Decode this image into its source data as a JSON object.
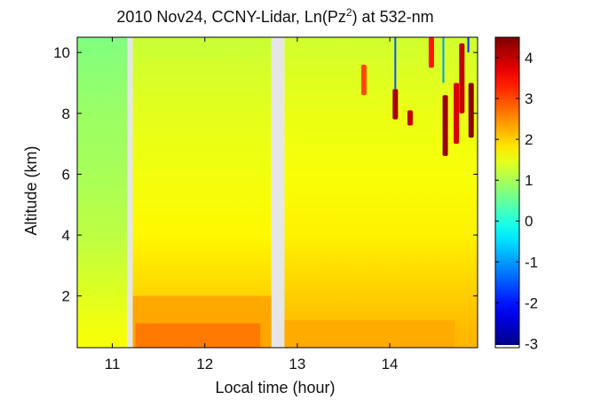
{
  "chart_data": {
    "type": "heatmap",
    "title": "2010 Nov24, CCNY-Lidar, Ln(Pz",
    "title_sup": "2",
    "title_suffix": ") at 532-nm",
    "xlabel": "Local time (hour)",
    "ylabel": "Altitude (km)",
    "xlim": [
      10.62,
      14.95
    ],
    "ylim": [
      0.3,
      10.5
    ],
    "x_ticks": [
      11,
      12,
      13,
      14
    ],
    "y_ticks": [
      2,
      4,
      6,
      8,
      10
    ],
    "colorbar": {
      "range": [
        -3.1,
        4.5
      ],
      "ticks": [
        4,
        3,
        2,
        1,
        0,
        -1,
        -2,
        -3
      ],
      "colormap": "jet"
    },
    "data_gaps_hours": [
      [
        11.16,
        11.22
      ],
      [
        12.72,
        12.86
      ]
    ],
    "background_field": {
      "x_bands": [
        {
          "x": [
            10.62,
            11.16
          ],
          "value": 1.0
        },
        {
          "x": [
            11.22,
            12.72
          ],
          "value": 1.55
        },
        {
          "x": [
            12.86,
            14.95
          ],
          "value": 1.6
        }
      ],
      "altitude_profile": [
        {
          "alt": 10.5,
          "offset": -0.3
        },
        {
          "alt": 8.0,
          "offset": -0.1
        },
        {
          "alt": 6.0,
          "offset": 0.0
        },
        {
          "alt": 4.0,
          "offset": 0.15
        },
        {
          "alt": 2.5,
          "offset": 0.35
        },
        {
          "alt": 1.0,
          "offset": 0.55
        },
        {
          "alt": 0.3,
          "offset": 0.6
        }
      ]
    },
    "boundary_layer": [
      {
        "x": [
          11.22,
          12.72
        ],
        "top_alt": 2.0,
        "value": 2.35
      },
      {
        "x": [
          11.25,
          12.6
        ],
        "top_alt": 1.1,
        "value": 2.7
      },
      {
        "x": [
          12.86,
          14.7
        ],
        "top_alt": 1.2,
        "value": 2.3
      }
    ],
    "cloud_features": [
      {
        "x": 13.72,
        "alt_range": [
          8.6,
          9.6
        ],
        "value": 3.0
      },
      {
        "x": 14.06,
        "alt_range": [
          7.8,
          8.8
        ],
        "value": 4.2
      },
      {
        "x": 14.22,
        "alt_range": [
          7.6,
          8.1
        ],
        "value": 4.0
      },
      {
        "x": 14.45,
        "alt_range": [
          9.5,
          10.5
        ],
        "value": 3.4
      },
      {
        "x": 14.6,
        "alt_range": [
          6.6,
          8.6
        ],
        "value": 4.3
      },
      {
        "x": 14.72,
        "alt_range": [
          7.0,
          9.0
        ],
        "value": 3.8
      },
      {
        "x": 14.78,
        "alt_range": [
          8.0,
          10.3
        ],
        "value": 4.0
      },
      {
        "x": 14.88,
        "alt_range": [
          7.2,
          9.0
        ],
        "value": 4.4
      }
    ],
    "low_signal_columns": [
      {
        "x": 14.06,
        "alt_range": [
          8.8,
          10.5
        ],
        "value": -1.5
      },
      {
        "x": 14.58,
        "alt_range": [
          9.0,
          10.5
        ],
        "value": -1.0
      },
      {
        "x": 14.85,
        "alt_range": [
          10.0,
          10.5
        ],
        "value": -1.8
      }
    ]
  }
}
